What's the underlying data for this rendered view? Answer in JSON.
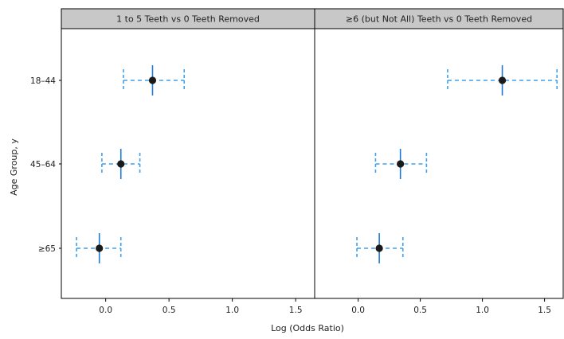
{
  "chart_data": {
    "type": "forest",
    "panels": [
      {
        "title": "1 to 5 Teeth vs 0 Teeth Removed",
        "xlim": [
          -0.35,
          1.65
        ],
        "xticks": [
          {
            "value": 0.0,
            "label": "0.0"
          },
          {
            "value": 0.5,
            "label": "0.5"
          },
          {
            "value": 1.0,
            "label": "1.0"
          },
          {
            "value": 1.5,
            "label": "1.5"
          }
        ],
        "estimates": [
          {
            "group": "18–44",
            "value": 0.37,
            "lower": 0.14,
            "upper": 0.62
          },
          {
            "group": "45–64",
            "value": 0.12,
            "lower": -0.03,
            "upper": 0.27
          },
          {
            "group": "≥65",
            "value": -0.05,
            "lower": -0.23,
            "upper": 0.12
          }
        ]
      },
      {
        "title": "≥6 (but Not All) Teeth vs 0 Teeth Removed",
        "xlim": [
          -0.35,
          1.65
        ],
        "xticks": [
          {
            "value": 0.0,
            "label": "0.0"
          },
          {
            "value": 0.5,
            "label": "0.5"
          },
          {
            "value": 1.0,
            "label": "1.0"
          },
          {
            "value": 1.5,
            "label": "1.5"
          }
        ],
        "estimates": [
          {
            "group": "18–44",
            "value": 1.16,
            "lower": 0.72,
            "upper": 1.6
          },
          {
            "group": "45–64",
            "value": 0.34,
            "lower": 0.14,
            "upper": 0.55
          },
          {
            "group": "≥65",
            "value": 0.17,
            "lower": -0.01,
            "upper": 0.36
          }
        ]
      }
    ],
    "categories": [
      "18–44",
      "45–64",
      "≥65"
    ],
    "xlabel": "Log (Odds Ratio)",
    "ylabel": "Age Group, y",
    "colors": {
      "ci": "#3ea0ee",
      "point": "#1a1a1a",
      "strip": "#c8c8c8"
    },
    "grid": false
  }
}
